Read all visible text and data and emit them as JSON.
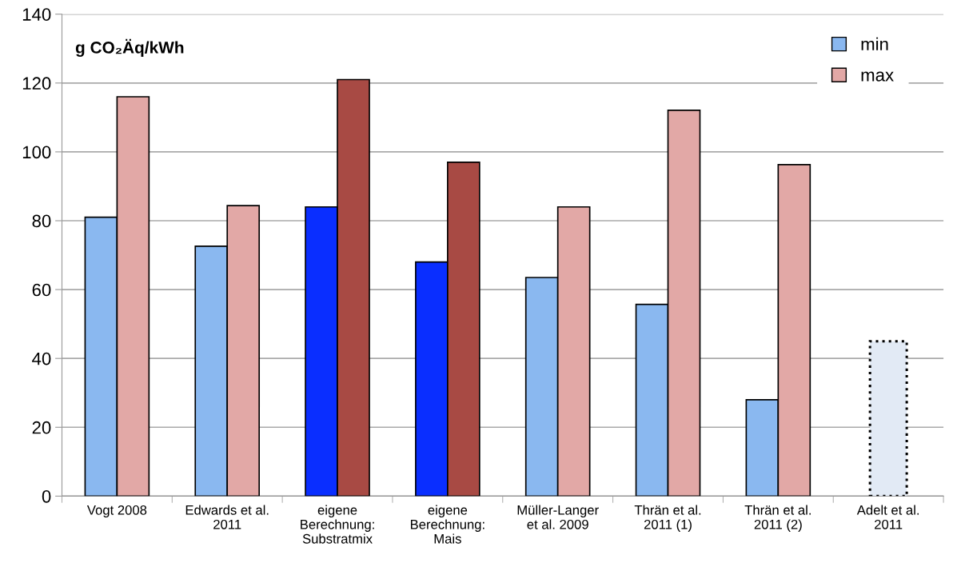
{
  "chart_data": {
    "type": "bar",
    "categories": [
      "Vogt 2008",
      "Edwards et al.\n2011",
      "eigene\nBerechnung:\nSubstratmix",
      "eigene\nBerechnung:\nMais",
      "Müller-Langer\net al. 2009",
      "Thrän et al.\n2011 (1)",
      "Thrän et al.\n2011 (2)",
      "Adelt et al.\n2011"
    ],
    "series": [
      {
        "name": "min",
        "color": "#8ab8f0",
        "colors": [
          "#8ab8f0",
          "#8ab8f0",
          "#0a2eff",
          "#0a2eff",
          "#8ab8f0",
          "#8ab8f0",
          "#8ab8f0",
          null
        ],
        "values": [
          81,
          72.6,
          84,
          68,
          63.5,
          55.7,
          28,
          null
        ]
      },
      {
        "name": "max",
        "color": "#e2a8a6",
        "colors": [
          "#e2a8a6",
          "#e2a8a6",
          "#a84a44",
          "#a84a44",
          "#e2a8a6",
          "#e2a8a6",
          "#e2a8a6",
          null
        ],
        "values": [
          116,
          84.4,
          121,
          97,
          84,
          112.1,
          96.3,
          null
        ]
      },
      {
        "color": "#e2eaf5",
        "line_style": "dotted",
        "values": [
          null,
          null,
          null,
          null,
          null,
          null,
          null,
          45
        ]
      }
    ],
    "ylim": [
      0,
      140
    ],
    "yticks": [
      0,
      20,
      40,
      60,
      80,
      100,
      120,
      140
    ],
    "grid": "y",
    "legend": "top right",
    "annotations": [
      "g CO₂Äq/kWh"
    ]
  }
}
